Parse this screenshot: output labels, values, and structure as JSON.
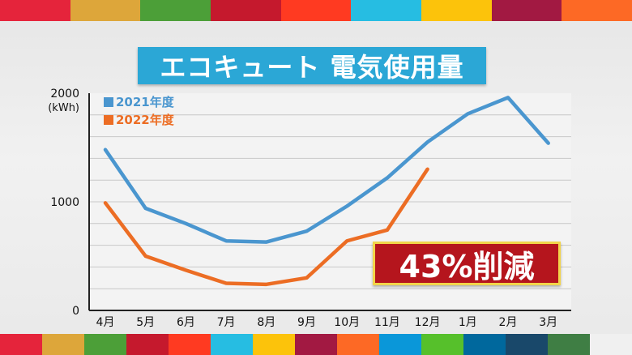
{
  "top_colors": [
    "#e5243b",
    "#dda63a",
    "#4c9f38",
    "#c5192d",
    "#ff3a21",
    "#26bde2",
    "#fcc30b",
    "#a21942",
    "#fd6925"
  ],
  "bottom_colors": [
    "#e5243b",
    "#dda63a",
    "#4c9f38",
    "#c5192d",
    "#ff3a21",
    "#26bde2",
    "#fcc30b",
    "#a21942",
    "#fd6925",
    "#0a97d9",
    "#56c02b",
    "#00689d",
    "#19486a",
    "#3f7e44",
    "#f0f0f0"
  ],
  "title": "エコキュート 電気使用量",
  "reduction_label": "43%削減",
  "chart_data": {
    "type": "line",
    "title": "エコキュート 電気使用量",
    "ylabel": "(kWh)",
    "ylim": [
      0,
      2000
    ],
    "yticks": [
      "0",
      "1000",
      "2000"
    ],
    "grid": true,
    "legend_position": "top-left",
    "categories": [
      "4月",
      "5月",
      "6月",
      "7月",
      "8月",
      "9月",
      "10月",
      "11月",
      "12月",
      "1月",
      "2月",
      "3月"
    ],
    "series": [
      {
        "name": "2021年度",
        "color": "#4a96cf",
        "values": [
          1480,
          940,
          800,
          640,
          630,
          730,
          960,
          1220,
          1550,
          1810,
          1960,
          1540
        ]
      },
      {
        "name": "2022年度",
        "color": "#ec6d24",
        "values": [
          990,
          500,
          370,
          250,
          240,
          300,
          640,
          740,
          1300,
          null,
          null,
          null
        ]
      }
    ]
  }
}
